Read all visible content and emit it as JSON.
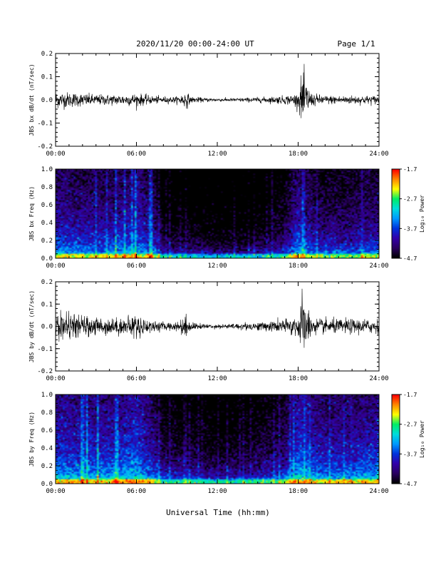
{
  "header": {
    "title": "2020/11/20  00:00-24:00 UT",
    "page": "Page 1/1"
  },
  "xaxis": {
    "label": "Universal Time (hh:mm)",
    "ticks": [
      "00:00",
      "06:00",
      "12:00",
      "18:00",
      "24:00"
    ],
    "range_hours": [
      0,
      24
    ]
  },
  "colorbar": {
    "label": "Log₁₀ Power",
    "ticks": [
      "-1.7",
      "-2.7",
      "-3.7",
      "-4.7"
    ],
    "tick_values": [
      -1.7,
      -2.7,
      -3.7,
      -4.7
    ],
    "range": [
      -4.7,
      -1.7
    ],
    "colormap": [
      "#000000",
      "#2a0060",
      "#3300aa",
      "#0033dd",
      "#0099ff",
      "#00dddd",
      "#00ee66",
      "#ffff00",
      "#ff8800",
      "#ff0000"
    ]
  },
  "chart_data": [
    {
      "type": "line",
      "ylabel": "JBS bx dB/dt (nT/sec)",
      "yticks": [
        "0.2",
        "0.1",
        "0.0",
        "-0.1",
        "-0.2"
      ],
      "ylim": [
        -0.2,
        0.2
      ],
      "color": "#000000",
      "series": [
        {
          "x": [
            0,
            1,
            2,
            3,
            4,
            5,
            6,
            7,
            8,
            9,
            9.7,
            10,
            11,
            12,
            13,
            14,
            15,
            16,
            17,
            18,
            18.3,
            19,
            20,
            21,
            22,
            23,
            24
          ],
          "amplitude": [
            0.04,
            0.035,
            0.03,
            0.025,
            0.025,
            0.025,
            0.03,
            0.02,
            0.015,
            0.015,
            0.04,
            0.015,
            0.01,
            0.008,
            0.008,
            0.01,
            0.012,
            0.015,
            0.02,
            0.03,
            0.13,
            0.03,
            0.02,
            0.02,
            0.02,
            0.02,
            0.02
          ]
        }
      ]
    },
    {
      "type": "heatmap",
      "ylabel": "JBS bx Freq (Hz)",
      "yticks": [
        "1.0",
        "0.8",
        "0.6",
        "0.4",
        "0.2",
        "0.0"
      ],
      "ylim": [
        0,
        1
      ],
      "zlim": [
        -4.7,
        -1.7
      ],
      "x_hours": [
        0,
        2,
        4,
        6,
        7.3,
        8,
        10,
        12,
        14,
        16,
        17,
        18,
        19,
        20,
        21,
        22,
        23,
        24
      ],
      "power_at_0_1_hz": [
        -3.5,
        -3.6,
        -3.6,
        -3.4,
        -3.7,
        -4.3,
        -4.3,
        -4.4,
        -4.4,
        -4.2,
        -4.0,
        -3.4,
        -3.7,
        -3.8,
        -3.8,
        -3.8,
        -3.7,
        -3.7
      ]
    },
    {
      "type": "line",
      "ylabel": "JBS by dB/dt (nT/sec)",
      "yticks": [
        "0.2",
        "0.1",
        "0.0",
        "-0.1",
        "-0.2"
      ],
      "ylim": [
        -0.2,
        0.2
      ],
      "color": "#000000",
      "series": [
        {
          "x": [
            0,
            1,
            2,
            3,
            4,
            5,
            6,
            7,
            8,
            9,
            9.7,
            10,
            11,
            12,
            13,
            14,
            15,
            16,
            17,
            18,
            18.2,
            19,
            20,
            21,
            22,
            23,
            24
          ],
          "amplitude": [
            0.07,
            0.06,
            0.05,
            0.045,
            0.04,
            0.04,
            0.06,
            0.03,
            0.02,
            0.02,
            0.06,
            0.02,
            0.012,
            0.01,
            0.012,
            0.018,
            0.02,
            0.025,
            0.035,
            0.05,
            0.17,
            0.04,
            0.035,
            0.035,
            0.035,
            0.035,
            0.035
          ]
        }
      ]
    },
    {
      "type": "heatmap",
      "ylabel": "JBS by Freq (Hz)",
      "yticks": [
        "1.0",
        "0.8",
        "0.6",
        "0.4",
        "0.2",
        "0.0"
      ],
      "ylim": [
        0,
        1
      ],
      "zlim": [
        -4.7,
        -1.7
      ],
      "x_hours": [
        0,
        2,
        4,
        6,
        7.3,
        8,
        10,
        12,
        14,
        16,
        17,
        18,
        19,
        20,
        21,
        22,
        23,
        24
      ],
      "power_at_0_1_hz": [
        -3.3,
        -3.4,
        -3.4,
        -3.2,
        -3.6,
        -4.0,
        -4.0,
        -4.2,
        -4.1,
        -3.9,
        -3.8,
        -3.2,
        -3.4,
        -3.5,
        -3.5,
        -3.5,
        -3.4,
        -3.4
      ]
    }
  ]
}
